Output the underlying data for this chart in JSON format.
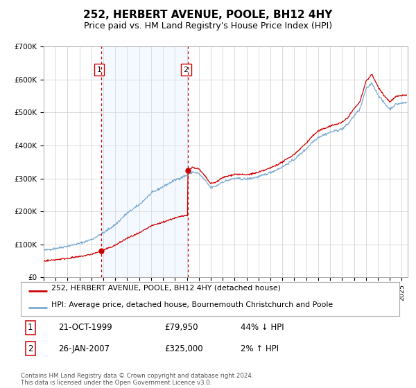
{
  "title": "252, HERBERT AVENUE, POOLE, BH12 4HY",
  "subtitle": "Price paid vs. HM Land Registry's House Price Index (HPI)",
  "legend_line1": "252, HERBERT AVENUE, POOLE, BH12 4HY (detached house)",
  "legend_line2": "HPI: Average price, detached house, Bournemouth Christchurch and Poole",
  "table_row1": [
    "1",
    "21-OCT-1999",
    "£79,950",
    "44% ↓ HPI"
  ],
  "table_row2": [
    "2",
    "26-JAN-2007",
    "£325,000",
    "2% ↑ HPI"
  ],
  "footnote": "Contains HM Land Registry data © Crown copyright and database right 2024.\nThis data is licensed under the Open Government Licence v3.0.",
  "hpi_color": "#7aaad0",
  "price_color": "#cc0000",
  "dot_color": "#cc0000",
  "vline_color": "#cc0000",
  "shade_color": "#ddeeff",
  "background_color": "#ffffff",
  "grid_color": "#cccccc",
  "ylim": [
    0,
    700000
  ],
  "xlim_start": 1995.0,
  "xlim_end": 2025.5,
  "purchase1_year": 1999.8,
  "purchase1_price": 79950,
  "purchase2_year": 2007.07,
  "purchase2_price": 325000,
  "title_fontsize": 11,
  "subtitle_fontsize": 9
}
